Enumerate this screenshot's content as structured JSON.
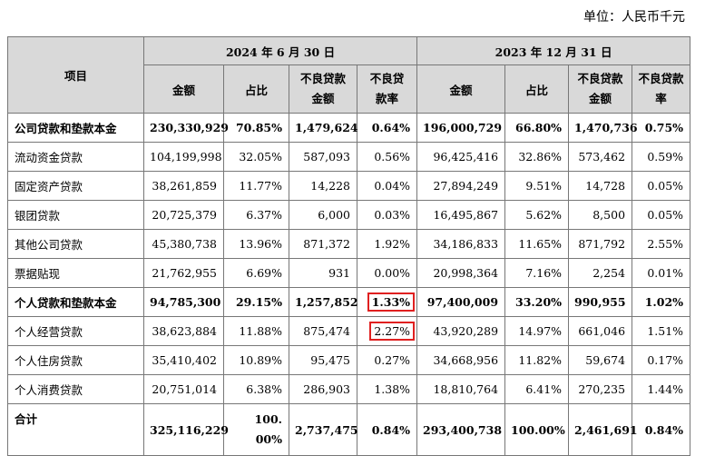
{
  "unit_label": "单位：人民币千元",
  "headers": {
    "item": "项目",
    "period1": "2024 年 6 月 30 日",
    "period2": "2023 年 12 月 31 日",
    "amount": "金额",
    "share": "占比",
    "npl_amount": "不良贷款金额",
    "npl_ratio": "不良贷款率"
  },
  "rows": [
    {
      "label": "公司贷款和垫款本金",
      "a1": "230,330,929",
      "s1": "70.85%",
      "n1": "1,479,624",
      "r1": "0.64%",
      "a2": "196,000,729",
      "s2": "66.80%",
      "n2": "1,470,736",
      "r2": "0.75%"
    },
    {
      "label": "流动资金贷款",
      "a1": "104,199,998",
      "s1": "32.05%",
      "n1": "587,093",
      "r1": "0.56%",
      "a2": "96,425,416",
      "s2": "32.86%",
      "n2": "573,462",
      "r2": "0.59%"
    },
    {
      "label": "固定资产贷款",
      "a1": "38,261,859",
      "s1": "11.77%",
      "n1": "14,228",
      "r1": "0.04%",
      "a2": "27,894,249",
      "s2": "9.51%",
      "n2": "14,728",
      "r2": "0.05%"
    },
    {
      "label": "银团贷款",
      "a1": "20,725,379",
      "s1": "6.37%",
      "n1": "6,000",
      "r1": "0.03%",
      "a2": "16,495,867",
      "s2": "5.62%",
      "n2": "8,500",
      "r2": "0.05%"
    },
    {
      "label": "其他公司贷款",
      "a1": "45,380,738",
      "s1": "13.96%",
      "n1": "871,372",
      "r1": "1.92%",
      "a2": "34,186,833",
      "s2": "11.65%",
      "n2": "871,792",
      "r2": "2.55%"
    },
    {
      "label": "票据贴现",
      "a1": "21,762,955",
      "s1": "6.69%",
      "n1": "931",
      "r1": "0.00%",
      "a2": "20,998,364",
      "s2": "7.16%",
      "n2": "2,254",
      "r2": "0.01%"
    },
    {
      "label": "个人贷款和垫款本金",
      "a1": "94,785,300",
      "s1": "29.15%",
      "n1": "1,257,852",
      "r1": "1.33%",
      "a2": "97,400,009",
      "s2": "33.20%",
      "n2": "990,955",
      "r2": "1.02%"
    },
    {
      "label": "个人经营贷款",
      "a1": "38,623,884",
      "s1": "11.88%",
      "n1": "875,474",
      "r1": "2.27%",
      "a2": "43,920,289",
      "s2": "14.97%",
      "n2": "661,046",
      "r2": "1.51%"
    },
    {
      "label": "个人住房贷款",
      "a1": "35,410,402",
      "s1": "10.89%",
      "n1": "95,475",
      "r1": "0.27%",
      "a2": "34,668,956",
      "s2": "11.82%",
      "n2": "59,674",
      "r2": "0.17%"
    },
    {
      "label": "个人消费贷款",
      "a1": "20,751,014",
      "s1": "6.38%",
      "n1": "286,903",
      "r1": "1.38%",
      "a2": "18,810,764",
      "s2": "6.41%",
      "n2": "270,235",
      "r2": "1.44%"
    },
    {
      "label": "合计",
      "a1": "325,116,229",
      "s1": "100.00%",
      "n1": "2,737,475",
      "r1": "0.84%",
      "a2": "293,400,738",
      "s2": "100.00%",
      "n2": "2,461,691",
      "r2": "0.84%"
    }
  ]
}
